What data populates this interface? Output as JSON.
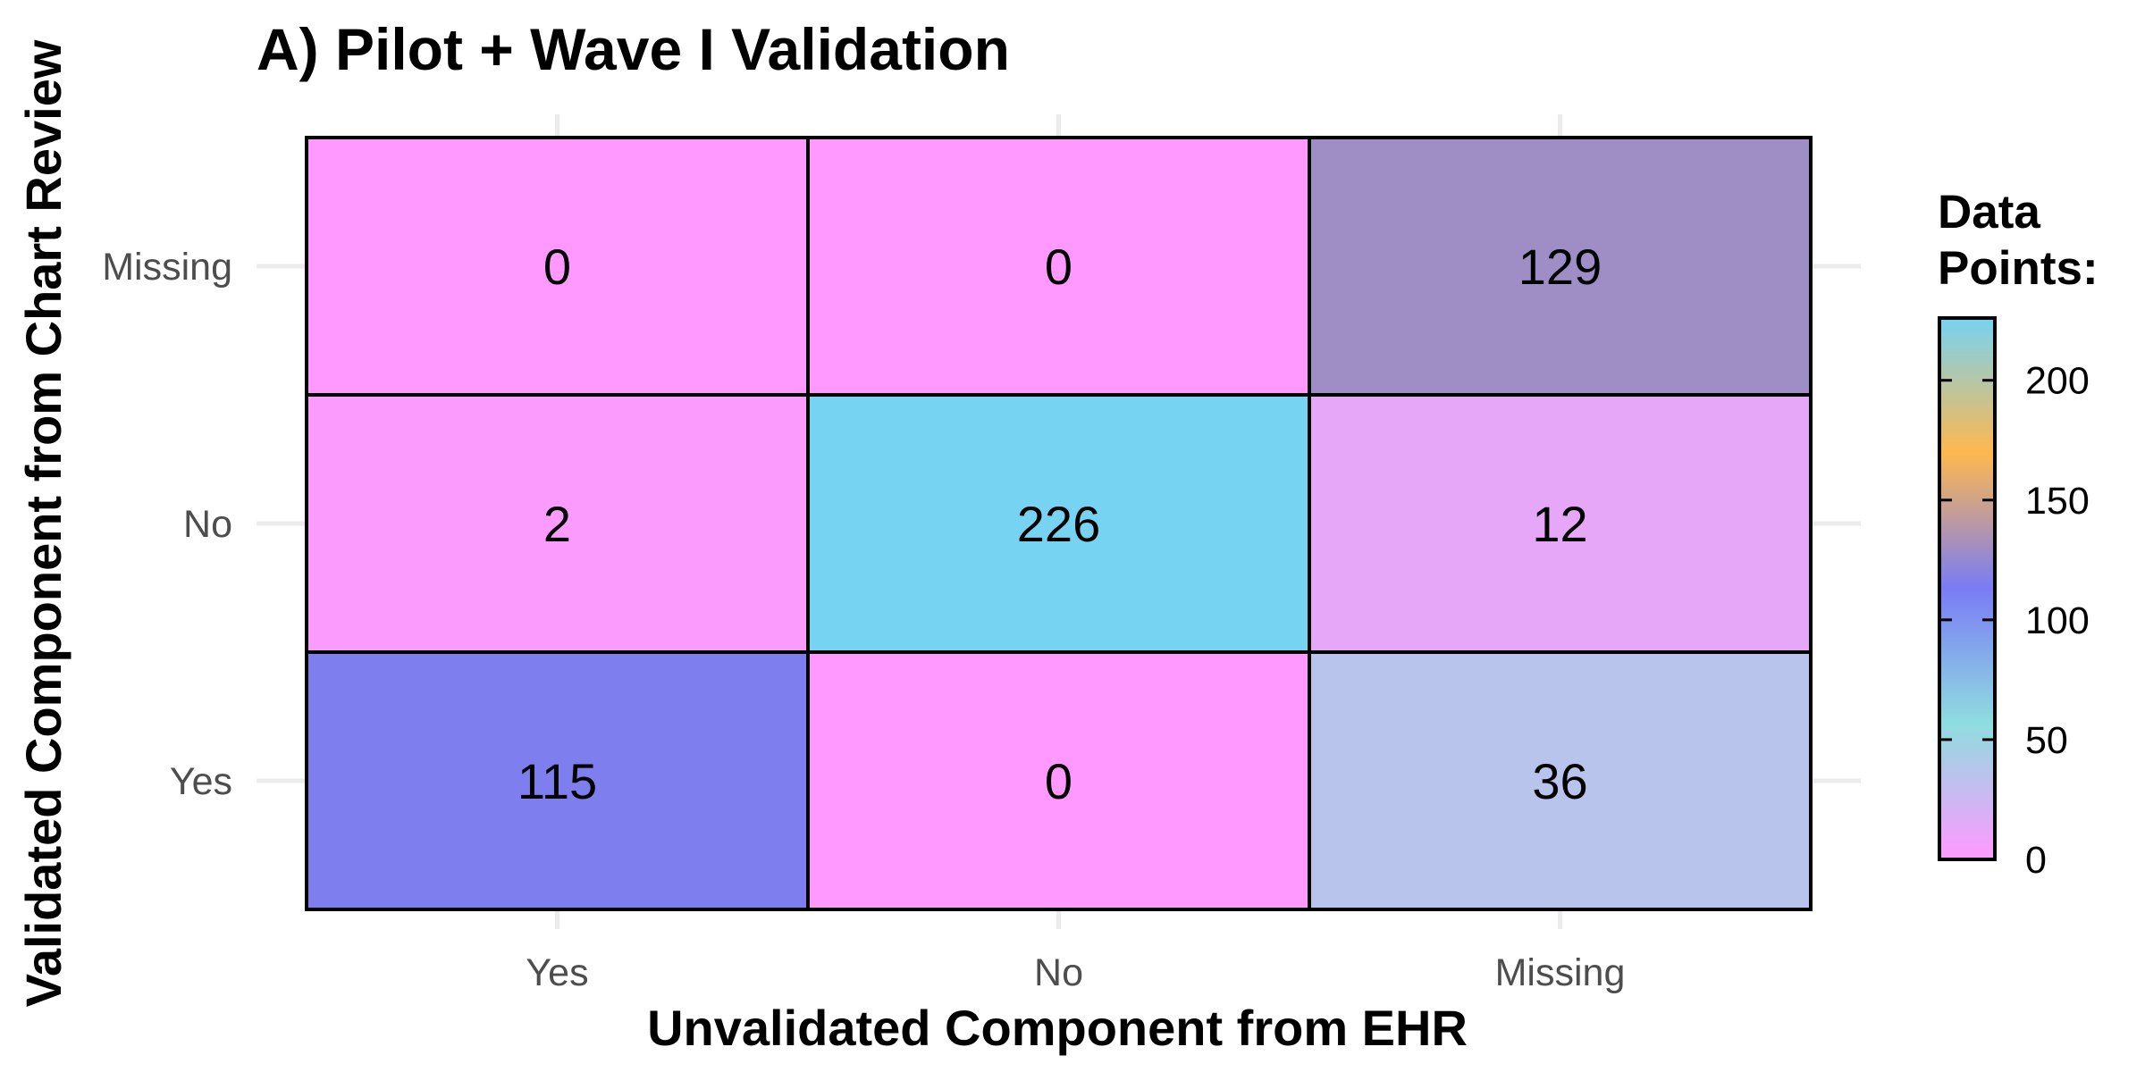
{
  "chart_data": {
    "type": "heatmap",
    "title": "A) Pilot + Wave I Validation",
    "xlabel": "Unvalidated Component from EHR",
    "ylabel": "Validated Component from Chart Review",
    "x_categories": [
      "Yes",
      "No",
      "Missing"
    ],
    "y_categories": [
      "Yes",
      "No",
      "Missing"
    ],
    "cells": [
      {
        "x": "Yes",
        "y": "Missing",
        "value": 0
      },
      {
        "x": "No",
        "y": "Missing",
        "value": 0
      },
      {
        "x": "Missing",
        "y": "Missing",
        "value": 129
      },
      {
        "x": "Yes",
        "y": "No",
        "value": 2
      },
      {
        "x": "No",
        "y": "No",
        "value": 226
      },
      {
        "x": "Missing",
        "y": "No",
        "value": 12
      },
      {
        "x": "Yes",
        "y": "Yes",
        "value": 115
      },
      {
        "x": "No",
        "y": "Yes",
        "value": 0
      },
      {
        "x": "Missing",
        "y": "Yes",
        "value": 36
      }
    ],
    "legend": {
      "title_lines": [
        "Data",
        "Points:"
      ],
      "ticks": [
        0,
        50,
        100,
        150,
        200
      ],
      "range": [
        0,
        226
      ],
      "position": "right",
      "colors": [
        "#ff99ff",
        "#8fdde0",
        "#7a7cf5",
        "#fdb84f",
        "#77d3f2"
      ]
    },
    "grid": true
  }
}
